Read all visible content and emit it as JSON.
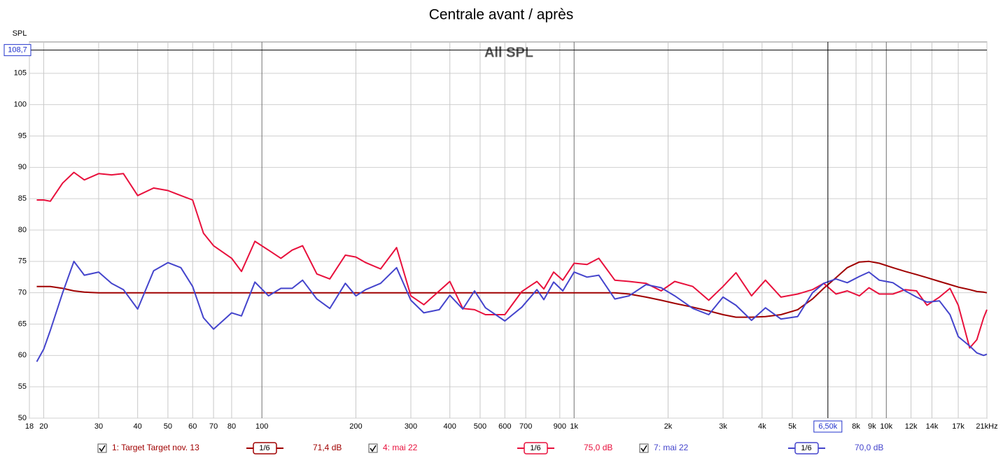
{
  "chart_data": {
    "type": "line",
    "title": "Centrale avant / après",
    "annotation": "All SPL",
    "ylabel": "SPL",
    "x": [
      19,
      20,
      21,
      23,
      25,
      27,
      30,
      33,
      36,
      40,
      45,
      50,
      55,
      60,
      65,
      70,
      80,
      86,
      95,
      105,
      115,
      125,
      135,
      150,
      165,
      185,
      200,
      215,
      240,
      270,
      300,
      330,
      370,
      400,
      440,
      480,
      520,
      600,
      680,
      760,
      800,
      860,
      920,
      1000,
      1100,
      1200,
      1350,
      1500,
      1700,
      1900,
      2100,
      2400,
      2700,
      3000,
      3300,
      3700,
      4100,
      4600,
      5200,
      5800,
      6300,
      6900,
      7500,
      8200,
      8800,
      9500,
      10500,
      11500,
      12500,
      13500,
      14800,
      16000,
      17000,
      18500,
      19500,
      20500,
      21000
    ],
    "series": [
      {
        "name": "1: Target Target nov. 13",
        "color": "#a00000",
        "smoothing": "1/6",
        "reading": "71,4 dB",
        "values": [
          71,
          71,
          71,
          70.7,
          70.3,
          70.1,
          70,
          70,
          70,
          70,
          70,
          70,
          70,
          70,
          70,
          70,
          70,
          70,
          70,
          70,
          70,
          70,
          70,
          70,
          70,
          70,
          70,
          70,
          70,
          70,
          70,
          70,
          70,
          70,
          70,
          70,
          70,
          70,
          70,
          70,
          70,
          70,
          70,
          70,
          70,
          70,
          70,
          69.8,
          69.3,
          68.8,
          68.3,
          67.7,
          67.1,
          66.5,
          66.1,
          66.1,
          66.2,
          66.5,
          67.3,
          69,
          70.7,
          72.4,
          74,
          74.9,
          75,
          74.7,
          74,
          73.4,
          72.9,
          72.4,
          71.8,
          71.3,
          70.9,
          70.5,
          70.2,
          70.1,
          70
        ]
      },
      {
        "name": "4: mai 22",
        "color": "#e8103c",
        "smoothing": "1/6",
        "reading": "75,0 dB",
        "values": [
          84.8,
          84.8,
          84.6,
          87.5,
          89.2,
          88,
          89,
          88.8,
          89,
          85.5,
          86.7,
          86.3,
          85.5,
          84.8,
          79.5,
          77.5,
          75.5,
          73.4,
          78.2,
          76.8,
          75.5,
          76.8,
          77.5,
          73,
          72.2,
          76,
          75.7,
          74.8,
          73.8,
          77.2,
          69.5,
          68.1,
          70.3,
          71.8,
          67.5,
          67.3,
          66.5,
          66.5,
          70.2,
          71.8,
          70.6,
          73.3,
          72,
          74.7,
          74.5,
          75.5,
          72,
          71.8,
          71.5,
          70.3,
          71.8,
          71,
          68.8,
          71,
          73.2,
          69.5,
          72,
          69.3,
          69.8,
          70.5,
          71.5,
          69.8,
          70.3,
          69.5,
          70.8,
          69.8,
          69.8,
          70.5,
          70.3,
          68,
          69.3,
          70.7,
          68,
          61.2,
          62.5,
          66,
          67.3
        ]
      },
      {
        "name": "7: mai 22",
        "color": "#4444cc",
        "smoothing": "1/6",
        "reading": "70,0 dB",
        "values": [
          59,
          61,
          64,
          70,
          75,
          72.8,
          73.3,
          71.5,
          70.5,
          67.4,
          73.5,
          74.8,
          74,
          71,
          66,
          64.2,
          66.8,
          66.3,
          71.7,
          69.5,
          70.7,
          70.7,
          72,
          69,
          67.5,
          71.5,
          69.5,
          70.5,
          71.5,
          74,
          68.8,
          66.8,
          67.3,
          69.6,
          67.4,
          70.3,
          67.6,
          65.5,
          67.7,
          70.5,
          68.9,
          71.7,
          70.3,
          73.3,
          72.5,
          72.8,
          69,
          69.5,
          71.3,
          70.8,
          69.5,
          67.5,
          66.5,
          69.3,
          68,
          65.6,
          67.6,
          65.8,
          66.2,
          70,
          71.5,
          72.2,
          71.6,
          72.6,
          73.3,
          72,
          71.6,
          70.3,
          69.3,
          68.5,
          68.7,
          66.5,
          63,
          61.5,
          60.4,
          60,
          60.2
        ]
      }
    ],
    "xlog": true,
    "xlim": [
      18,
      21000
    ],
    "ylim": [
      50,
      110
    ],
    "xticks": [
      18,
      20,
      30,
      40,
      50,
      60,
      70,
      80,
      100,
      200,
      300,
      400,
      500,
      600,
      700,
      900,
      {
        "value": 1000,
        "label": "1k"
      },
      {
        "value": 2000,
        "label": "2k"
      },
      {
        "value": 3000,
        "label": "3k"
      },
      {
        "value": 4000,
        "label": "4k"
      },
      {
        "value": 5000,
        "label": "5k"
      },
      {
        "value": 8000,
        "label": "8k"
      },
      {
        "value": 9000,
        "label": "9k"
      },
      {
        "value": 10000,
        "label": "10k"
      },
      {
        "value": 12000,
        "label": "12k"
      },
      {
        "value": 14000,
        "label": "14k"
      },
      {
        "value": 17000,
        "label": "17k"
      },
      {
        "value": 21000,
        "label": "21kHz"
      }
    ],
    "yticks": [
      50,
      55,
      60,
      65,
      70,
      75,
      80,
      85,
      90,
      95,
      100,
      105
    ],
    "grid": true,
    "cursor": {
      "x": {
        "value": 6500,
        "label": "6,50k"
      },
      "y": {
        "value": 108.7,
        "label": "108,7"
      }
    }
  }
}
